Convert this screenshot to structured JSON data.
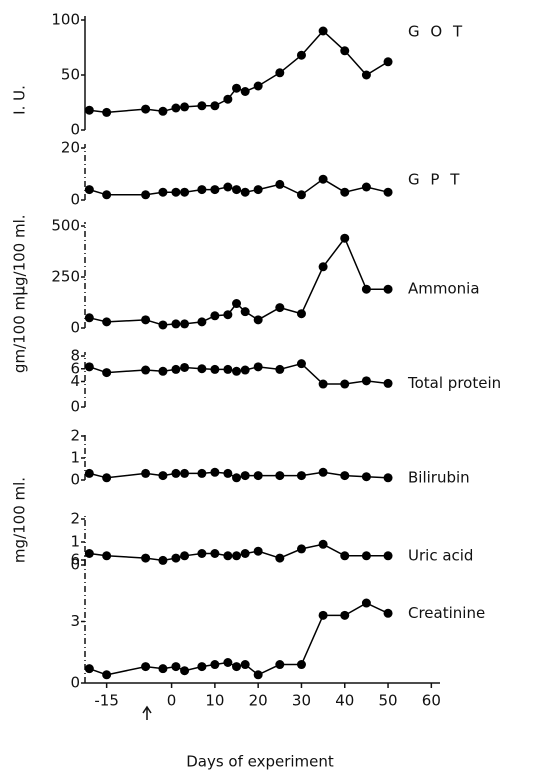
{
  "chart_data": [
    {
      "type": "line",
      "title": "G O T",
      "ylabel": "I. U.",
      "x": [
        -19,
        -15,
        -6,
        -2,
        1,
        3,
        7,
        10,
        13,
        15,
        17,
        20,
        25,
        30,
        35,
        40,
        45,
        50
      ],
      "values": [
        18,
        16,
        19,
        17,
        20,
        21,
        22,
        22,
        28,
        38,
        35,
        40,
        52,
        68,
        90,
        72,
        50,
        62
      ],
      "ylim": [
        0,
        100
      ],
      "yticks": [
        0,
        50,
        100
      ],
      "xlim": [
        -20,
        62
      ],
      "color": "#000000"
    },
    {
      "type": "line",
      "title": "G P T",
      "x": [
        -19,
        -15,
        -6,
        -2,
        1,
        3,
        7,
        10,
        13,
        15,
        17,
        20,
        25,
        30,
        35,
        40,
        45,
        50
      ],
      "values": [
        4,
        2,
        2,
        3,
        3,
        3,
        4,
        4,
        5,
        4,
        3,
        4,
        6,
        2,
        8,
        3,
        5,
        3
      ],
      "ylim": [
        0,
        20
      ],
      "yticks": [
        0,
        20
      ],
      "xlim": [
        -20,
        62
      ],
      "color": "#000000"
    },
    {
      "type": "line",
      "title": "Ammonia",
      "ylabel": "µg/100 ml.",
      "x": [
        -19,
        -15,
        -6,
        -2,
        1,
        3,
        7,
        10,
        13,
        15,
        17,
        20,
        25,
        30,
        35,
        40,
        45,
        50
      ],
      "values": [
        50,
        30,
        40,
        15,
        20,
        20,
        30,
        60,
        65,
        120,
        80,
        40,
        100,
        70,
        300,
        440,
        190,
        190
      ],
      "ylim": [
        0,
        500
      ],
      "yticks": [
        0,
        250,
        500
      ],
      "xlim": [
        -20,
        62
      ],
      "color": "#000000"
    },
    {
      "type": "line",
      "title": "Total protein",
      "ylabel": "gm/100 ml.",
      "x": [
        -19,
        -15,
        -6,
        -2,
        1,
        3,
        7,
        10,
        13,
        15,
        17,
        20,
        25,
        30,
        35,
        40,
        45,
        50
      ],
      "values": [
        6.3,
        5.4,
        5.8,
        5.6,
        5.9,
        6.2,
        6.0,
        5.9,
        5.9,
        5.6,
        5.8,
        6.3,
        5.9,
        6.8,
        3.6,
        3.6,
        4.1,
        3.7
      ],
      "ylim": [
        0,
        8
      ],
      "yticks": [
        0,
        4,
        6,
        8
      ],
      "xlim": [
        -20,
        62
      ],
      "color": "#000000"
    },
    {
      "type": "line",
      "title": "Bilirubin",
      "x": [
        -19,
        -15,
        -6,
        -2,
        1,
        3,
        7,
        10,
        13,
        15,
        17,
        20,
        25,
        30,
        35,
        40,
        45,
        50
      ],
      "values": [
        0.3,
        0.1,
        0.3,
        0.2,
        0.3,
        0.3,
        0.3,
        0.35,
        0.3,
        0.1,
        0.2,
        0.2,
        0.2,
        0.2,
        0.35,
        0.2,
        0.15,
        0.1
      ],
      "ylim": [
        0,
        2
      ],
      "yticks": [
        0,
        1,
        2
      ],
      "xlim": [
        -20,
        62
      ],
      "color": "#000000"
    },
    {
      "type": "line",
      "title": "Uric acid",
      "ylabel": "mg/100 ml.",
      "x": [
        -19,
        -15,
        -6,
        -2,
        1,
        3,
        7,
        10,
        13,
        15,
        17,
        20,
        25,
        30,
        35,
        40,
        45,
        50
      ],
      "values": [
        0.5,
        0.4,
        0.3,
        0.2,
        0.3,
        0.4,
        0.5,
        0.5,
        0.4,
        0.4,
        0.5,
        0.6,
        0.3,
        0.7,
        0.9,
        0.4,
        0.4,
        0.4
      ],
      "ylim": [
        0,
        2
      ],
      "yticks": [
        0,
        1,
        2
      ],
      "xlim": [
        -20,
        62
      ],
      "color": "#000000"
    },
    {
      "type": "line",
      "title": "Creatinine",
      "xlabel": "Days of experiment",
      "x": [
        -19,
        -15,
        -6,
        -2,
        1,
        3,
        7,
        10,
        13,
        15,
        17,
        20,
        25,
        30,
        35,
        40,
        45,
        50
      ],
      "values": [
        0.7,
        0.4,
        0.8,
        0.7,
        0.8,
        0.6,
        0.8,
        0.9,
        1.0,
        0.8,
        0.9,
        0.4,
        0.9,
        0.9,
        3.3,
        3.3,
        3.9,
        3.4
      ],
      "ylim": [
        0,
        6
      ],
      "yticks": [
        0,
        3,
        6
      ],
      "xlim": [
        -20,
        62
      ],
      "xticks": [
        -15,
        0,
        10,
        20,
        30,
        40,
        50,
        60
      ],
      "color": "#000000"
    }
  ]
}
